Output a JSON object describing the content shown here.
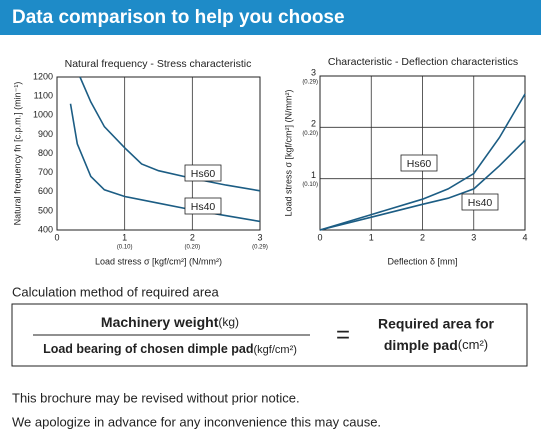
{
  "header": {
    "title": "Data comparison to help you choose"
  },
  "chart_data": [
    {
      "type": "line",
      "title": "Natural frequency - Stress characteristic",
      "x_label": "Load stress σ [kgf/cm²] (N/mm²)",
      "y_label": "Natural frequency fn [c.p.m.] (min⁻¹)",
      "xlim": [
        0,
        3
      ],
      "ylim": [
        400,
        1200
      ],
      "xticks": [
        0,
        1,
        2,
        3
      ],
      "xticks_secondary": [
        null,
        "(0.10)",
        "(0.20)",
        "(0.29)"
      ],
      "yticks": [
        400,
        500,
        600,
        700,
        800,
        900,
        1000,
        1100,
        1200
      ],
      "grid": "x",
      "series": [
        {
          "name": "Hs60",
          "color": "#1c5d84",
          "x": [
            0.34,
            0.5,
            0.7,
            1,
            1.25,
            1.5,
            2,
            2.5,
            3
          ],
          "values": [
            1200,
            1070,
            940,
            830,
            745,
            710,
            670,
            635,
            605
          ]
        },
        {
          "name": "Hs40",
          "color": "#1c5d84",
          "x": [
            0.2,
            0.3,
            0.5,
            0.7,
            1,
            1.5,
            2,
            2.5,
            3
          ],
          "values": [
            1060,
            850,
            680,
            610,
            575,
            540,
            505,
            475,
            445
          ]
        }
      ]
    },
    {
      "type": "line",
      "title": "Characteristic - Deflection characteristics",
      "x_label": "Deflection δ [mm]",
      "y_label": "Load stress σ [kgf/cm²] (N/mm²)",
      "xlim": [
        0,
        4
      ],
      "ylim": [
        0,
        3
      ],
      "xticks": [
        0,
        1,
        2,
        3,
        4
      ],
      "yticks": [
        1,
        2,
        3
      ],
      "yticks_secondary": [
        "(0.10)",
        "(0.20)",
        "(0.29)"
      ],
      "grid": "both",
      "series": [
        {
          "name": "Hs60",
          "color": "#1c5d84",
          "x": [
            0,
            1,
            2,
            2.5,
            3,
            3.5,
            4
          ],
          "values": [
            0,
            0.3,
            0.6,
            0.8,
            1.1,
            1.8,
            2.65
          ]
        },
        {
          "name": "Hs40",
          "color": "#1c5d84",
          "x": [
            0,
            1,
            2,
            2.5,
            3,
            3.5,
            4
          ],
          "values": [
            0,
            0.25,
            0.5,
            0.62,
            0.8,
            1.25,
            1.75
          ]
        }
      ]
    }
  ],
  "calculation": {
    "heading": "Calculation method of required area",
    "numerator": "Machinery weight",
    "numerator_unit": "(kg)",
    "denominator": "Load bearing of chosen dimple pad",
    "denominator_unit": "(kgf/cm²)",
    "equals": "=",
    "result_line1": "Required area for",
    "result_line2": "dimple pad",
    "result_unit": "(cm²)"
  },
  "notes": [
    "This brochure may be revised without prior notice.",
    "We apologize in advance for any inconvenience this may cause."
  ]
}
